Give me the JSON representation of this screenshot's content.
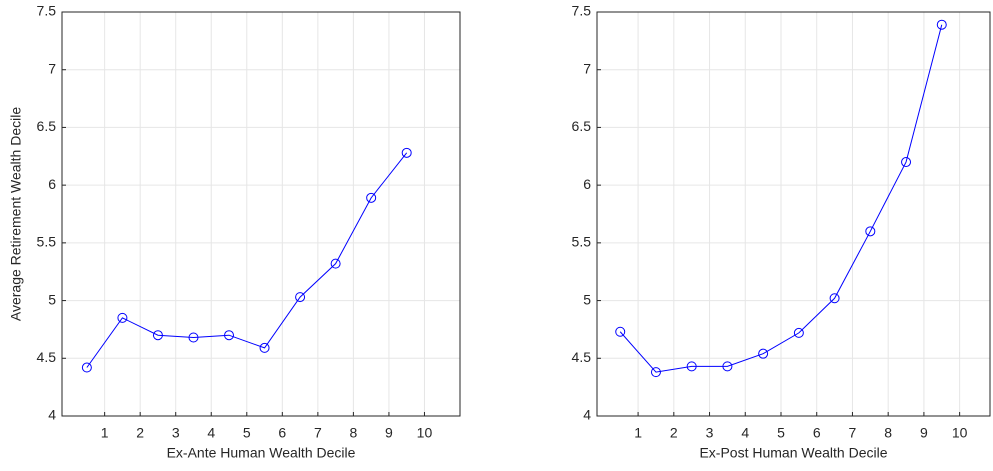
{
  "chart_data": [
    {
      "type": "line",
      "xlabel": "Ex-Ante Human Wealth Decile",
      "ylabel": "Average Retirement Wealth Decile",
      "x": [
        0.5,
        1.5,
        2.5,
        3.5,
        4.5,
        5.5,
        6.5,
        7.5,
        8.5,
        9.5
      ],
      "series": [
        {
          "color": "#0000ff",
          "values": [
            4.42,
            4.85,
            4.7,
            4.68,
            4.7,
            4.59,
            5.03,
            5.32,
            5.89,
            6.28
          ]
        }
      ],
      "xlim": [
        -0.2,
        11
      ],
      "xticks": [
        1,
        2,
        3,
        4,
        5,
        6,
        7,
        8,
        9,
        10
      ],
      "ylim": [
        4,
        7.5
      ],
      "yticks": [
        4,
        4.5,
        5,
        5.5,
        6,
        6.5,
        7,
        7.5
      ],
      "grid": true
    },
    {
      "type": "line",
      "xlabel": "Ex-Post Human Wealth Decile",
      "x": [
        0.5,
        1.5,
        2.5,
        3.5,
        4.5,
        5.5,
        6.5,
        7.5,
        8.5,
        9.5
      ],
      "series": [
        {
          "color": "#0000ff",
          "values": [
            4.73,
            4.38,
            4.43,
            4.43,
            4.54,
            4.72,
            5.02,
            5.6,
            6.2,
            7.39
          ]
        }
      ],
      "xlim": [
        -0.15,
        10.85
      ],
      "xticks": [
        1,
        2,
        3,
        4,
        5,
        6,
        7,
        8,
        9,
        10
      ],
      "ylim": [
        4,
        7.5
      ],
      "yticks": [
        4,
        4.5,
        5,
        5.5,
        6,
        6.5,
        7,
        7.5
      ],
      "grid": true
    }
  ]
}
